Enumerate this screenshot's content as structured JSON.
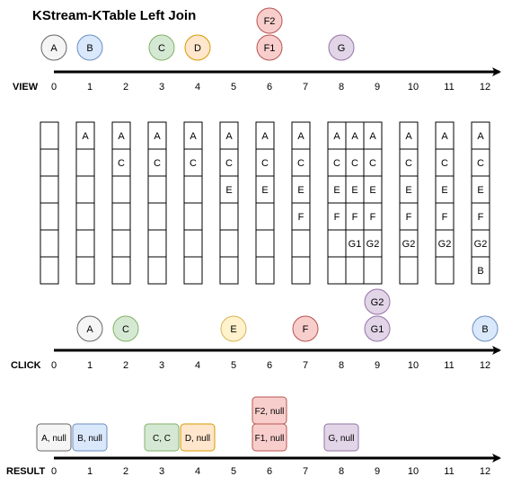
{
  "title": "KStream-KTable Left Join",
  "ticks": [
    "0",
    "1",
    "2",
    "3",
    "4",
    "5",
    "6",
    "7",
    "8",
    "9",
    "10",
    "11",
    "12"
  ],
  "colors": {
    "gray": {
      "fill": "#f5f5f5",
      "stroke": "#666666"
    },
    "blue": {
      "fill": "#dae8fc",
      "stroke": "#6c8ebf"
    },
    "green": {
      "fill": "#d5e8d4",
      "stroke": "#82b366"
    },
    "orange": {
      "fill": "#ffe6cc",
      "stroke": "#d79b00"
    },
    "red": {
      "fill": "#f8cecc",
      "stroke": "#b85450"
    },
    "purple": {
      "fill": "#e1d5e7",
      "stroke": "#9673a6"
    },
    "yellow": {
      "fill": "#fff2cc",
      "stroke": "#d6b656"
    }
  },
  "view": {
    "label": "VIEW",
    "events": [
      {
        "label": "A",
        "t": 0,
        "stack": 0,
        "color": "gray"
      },
      {
        "label": "B",
        "t": 1,
        "stack": 0,
        "color": "blue"
      },
      {
        "label": "C",
        "t": 3,
        "stack": 0,
        "color": "green"
      },
      {
        "label": "D",
        "t": 4,
        "stack": 0,
        "color": "orange"
      },
      {
        "label": "F1",
        "t": 6,
        "stack": 0,
        "color": "red"
      },
      {
        "label": "F2",
        "t": 6,
        "stack": 1,
        "color": "red"
      },
      {
        "label": "G",
        "t": 8,
        "stack": 0,
        "color": "purple"
      }
    ]
  },
  "table_states": [
    {
      "t": 0,
      "cells": [
        "",
        "",
        "",
        "",
        "",
        ""
      ]
    },
    {
      "t": 1,
      "cells": [
        "A",
        "",
        "",
        "",
        "",
        ""
      ]
    },
    {
      "t": 2,
      "cells": [
        "A",
        "C",
        "",
        "",
        "",
        ""
      ]
    },
    {
      "t": 3,
      "cells": [
        "A",
        "C",
        "",
        "",
        "",
        ""
      ]
    },
    {
      "t": 4,
      "cells": [
        "A",
        "C",
        "",
        "",
        "",
        ""
      ]
    },
    {
      "t": 5,
      "cells": [
        "A",
        "C",
        "E",
        "",
        "",
        ""
      ]
    },
    {
      "t": 6,
      "cells": [
        "A",
        "C",
        "E",
        "",
        "",
        ""
      ]
    },
    {
      "t": 7,
      "cells": [
        "A",
        "C",
        "E",
        "F",
        "",
        ""
      ]
    },
    {
      "t": 8,
      "cells": [
        "A",
        "C",
        "E",
        "F",
        "",
        ""
      ]
    },
    {
      "t": 8.5,
      "cells": [
        "A",
        "C",
        "E",
        "F",
        "G1",
        ""
      ]
    },
    {
      "t": 9,
      "cells": [
        "A",
        "C",
        "E",
        "F",
        "G2",
        ""
      ]
    },
    {
      "t": 10,
      "cells": [
        "A",
        "C",
        "E",
        "F",
        "G2",
        ""
      ]
    },
    {
      "t": 11,
      "cells": [
        "A",
        "C",
        "E",
        "F",
        "G2",
        ""
      ]
    },
    {
      "t": 12,
      "cells": [
        "A",
        "C",
        "E",
        "F",
        "G2",
        "B"
      ]
    }
  ],
  "click": {
    "label": "CLICK",
    "events": [
      {
        "label": "A",
        "t": 1,
        "stack": 0,
        "color": "gray"
      },
      {
        "label": "C",
        "t": 2,
        "stack": 0,
        "color": "green"
      },
      {
        "label": "E",
        "t": 5,
        "stack": 0,
        "color": "yellow"
      },
      {
        "label": "F",
        "t": 7,
        "stack": 0,
        "color": "red"
      },
      {
        "label": "G1",
        "t": 9,
        "stack": 0,
        "color": "purple"
      },
      {
        "label": "G2",
        "t": 9,
        "stack": 1,
        "color": "purple"
      },
      {
        "label": "B",
        "t": 12,
        "stack": 0,
        "color": "blue"
      }
    ]
  },
  "result": {
    "label": "RESULT",
    "events": [
      {
        "label": "A, null",
        "t": 0,
        "stack": 0,
        "color": "gray"
      },
      {
        "label": "B, null",
        "t": 1,
        "stack": 0,
        "color": "blue"
      },
      {
        "label": "C, C",
        "t": 3,
        "stack": 0,
        "color": "green"
      },
      {
        "label": "D, null",
        "t": 4,
        "stack": 0,
        "color": "orange"
      },
      {
        "label": "F1, null",
        "t": 6,
        "stack": 0,
        "color": "red"
      },
      {
        "label": "F2, null",
        "t": 6,
        "stack": 1,
        "color": "red"
      },
      {
        "label": "G, null",
        "t": 8,
        "stack": 0,
        "color": "purple"
      }
    ]
  }
}
